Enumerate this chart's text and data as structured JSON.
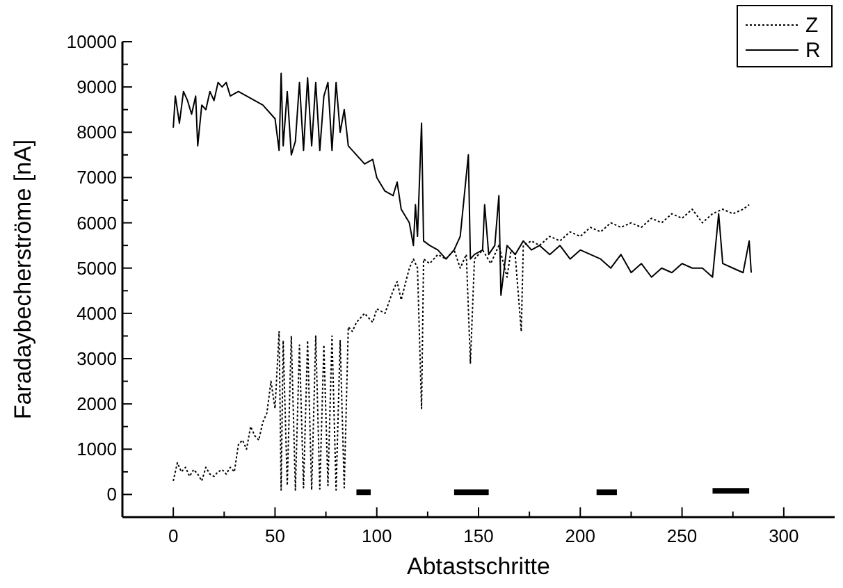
{
  "chart_data": {
    "type": "line",
    "xlabel": "Abtastschritte",
    "ylabel": "Faradaybecherströme [nA]",
    "xlim": [
      -25,
      325
    ],
    "ylim": [
      -500,
      10000
    ],
    "xticks": [
      0,
      {
        "value": 25,
        "label": null
      },
      50,
      {
        "value": 75,
        "label": null
      },
      100,
      {
        "value": 125,
        "label": null
      },
      150,
      {
        "value": 175,
        "label": null
      },
      200,
      {
        "value": 225,
        "label": null
      },
      250,
      {
        "value": 275,
        "label": null
      },
      300
    ],
    "yticks": [
      0,
      {
        "value": 500,
        "label": null
      },
      1000,
      {
        "value": 1500,
        "label": null
      },
      2000,
      {
        "value": 2500,
        "label": null
      },
      3000,
      {
        "value": 3500,
        "label": null
      },
      4000,
      {
        "value": 4500,
        "label": null
      },
      5000,
      {
        "value": 5500,
        "label": null
      },
      6000,
      {
        "value": 6500,
        "label": null
      },
      7000,
      {
        "value": 7500,
        "label": null
      },
      8000,
      {
        "value": 8500,
        "label": null
      },
      9000,
      {
        "value": 9500,
        "label": null
      },
      10000
    ],
    "grid": false,
    "legend": "top right",
    "series": [
      {
        "name": "Z",
        "color": "#000000",
        "line_style": "dotted",
        "x": [
          0,
          2,
          4,
          6,
          8,
          10,
          12,
          14,
          16,
          18,
          20,
          22,
          24,
          26,
          28,
          30,
          32,
          34,
          36,
          38,
          40,
          42,
          44,
          46,
          48,
          50,
          52,
          53,
          54,
          56,
          58,
          60,
          62,
          64,
          66,
          68,
          70,
          72,
          74,
          76,
          78,
          80,
          82,
          84,
          86,
          88,
          90,
          94,
          98,
          100,
          104,
          108,
          110,
          112,
          116,
          118,
          120,
          122,
          123,
          126,
          130,
          134,
          138,
          141,
          144,
          146,
          148,
          152,
          156,
          160,
          164,
          166,
          168,
          171,
          172,
          176,
          180,
          185,
          190,
          195,
          200,
          205,
          210,
          215,
          220,
          225,
          230,
          235,
          240,
          245,
          250,
          255,
          260,
          265,
          270,
          275,
          280,
          283
        ],
        "values": [
          300,
          700,
          500,
          600,
          400,
          550,
          450,
          300,
          600,
          450,
          400,
          500,
          550,
          450,
          600,
          500,
          1100,
          1200,
          1000,
          1500,
          1300,
          1200,
          1600,
          1800,
          2500,
          1900,
          3600,
          100,
          3400,
          200,
          3500,
          100,
          3300,
          150,
          3400,
          100,
          3500,
          120,
          3300,
          200,
          3500,
          100,
          3400,
          150,
          3700,
          3600,
          3800,
          4000,
          3800,
          4100,
          4000,
          4500,
          4700,
          4300,
          5000,
          5200,
          5000,
          1900,
          5200,
          5100,
          5300,
          5200,
          5400,
          5000,
          5300,
          2900,
          5200,
          5400,
          5100,
          5500,
          4800,
          5400,
          5300,
          3600,
          5500,
          5600,
          5500,
          5700,
          5600,
          5800,
          5700,
          5900,
          5800,
          6000,
          5900,
          6000,
          5900,
          6100,
          6000,
          6200,
          6100,
          6300,
          6000,
          6200,
          6300,
          6200,
          6300,
          6400
        ]
      },
      {
        "name": "R",
        "color": "#000000",
        "line_style": "solid",
        "x": [
          0,
          1,
          3,
          5,
          7,
          9,
          11,
          12,
          14,
          16,
          18,
          20,
          22,
          24,
          26,
          28,
          32,
          36,
          40,
          44,
          48,
          50,
          52,
          53,
          54,
          56,
          58,
          60,
          62,
          64,
          66,
          68,
          70,
          72,
          74,
          76,
          78,
          80,
          82,
          84,
          86,
          90,
          94,
          98,
          100,
          104,
          108,
          110,
          112,
          116,
          118,
          119,
          120,
          122,
          123,
          126,
          130,
          134,
          138,
          141,
          145,
          146,
          148,
          152,
          153,
          155,
          158,
          160,
          161,
          164,
          168,
          172,
          176,
          180,
          185,
          190,
          195,
          200,
          205,
          210,
          215,
          220,
          225,
          230,
          235,
          240,
          245,
          250,
          255,
          260,
          265,
          268,
          270,
          275,
          280,
          283,
          284
        ],
        "values": [
          8100,
          8800,
          8200,
          8900,
          8700,
          8400,
          8800,
          7700,
          8600,
          8500,
          8900,
          8700,
          9100,
          9000,
          9100,
          8800,
          8900,
          8800,
          8700,
          8600,
          8400,
          8300,
          7600,
          9300,
          7700,
          8900,
          7500,
          7800,
          9100,
          7600,
          9200,
          7700,
          9100,
          7600,
          8800,
          9100,
          7600,
          9100,
          8000,
          8500,
          7700,
          7500,
          7300,
          7400,
          7000,
          6700,
          6600,
          6900,
          6300,
          6000,
          5500,
          6400,
          5700,
          8200,
          5600,
          5500,
          5400,
          5200,
          5400,
          5700,
          7500,
          5200,
          5300,
          5400,
          6400,
          5300,
          5500,
          6600,
          4400,
          5500,
          5300,
          5600,
          5400,
          5500,
          5300,
          5500,
          5200,
          5400,
          5300,
          5200,
          5000,
          5300,
          4900,
          5100,
          4800,
          5000,
          4900,
          5100,
          5000,
          5000,
          4800,
          6200,
          5100,
          5000,
          4900,
          5600,
          4900
        ]
      },
      {
        "color": "#000000",
        "line_style": "solid",
        "x": [
          90,
          97,
          null,
          138,
          155,
          null,
          208,
          218,
          null,
          265,
          283
        ],
        "values": [
          50,
          50,
          null,
          50,
          50,
          null,
          50,
          50,
          null,
          80,
          80
        ]
      }
    ]
  }
}
